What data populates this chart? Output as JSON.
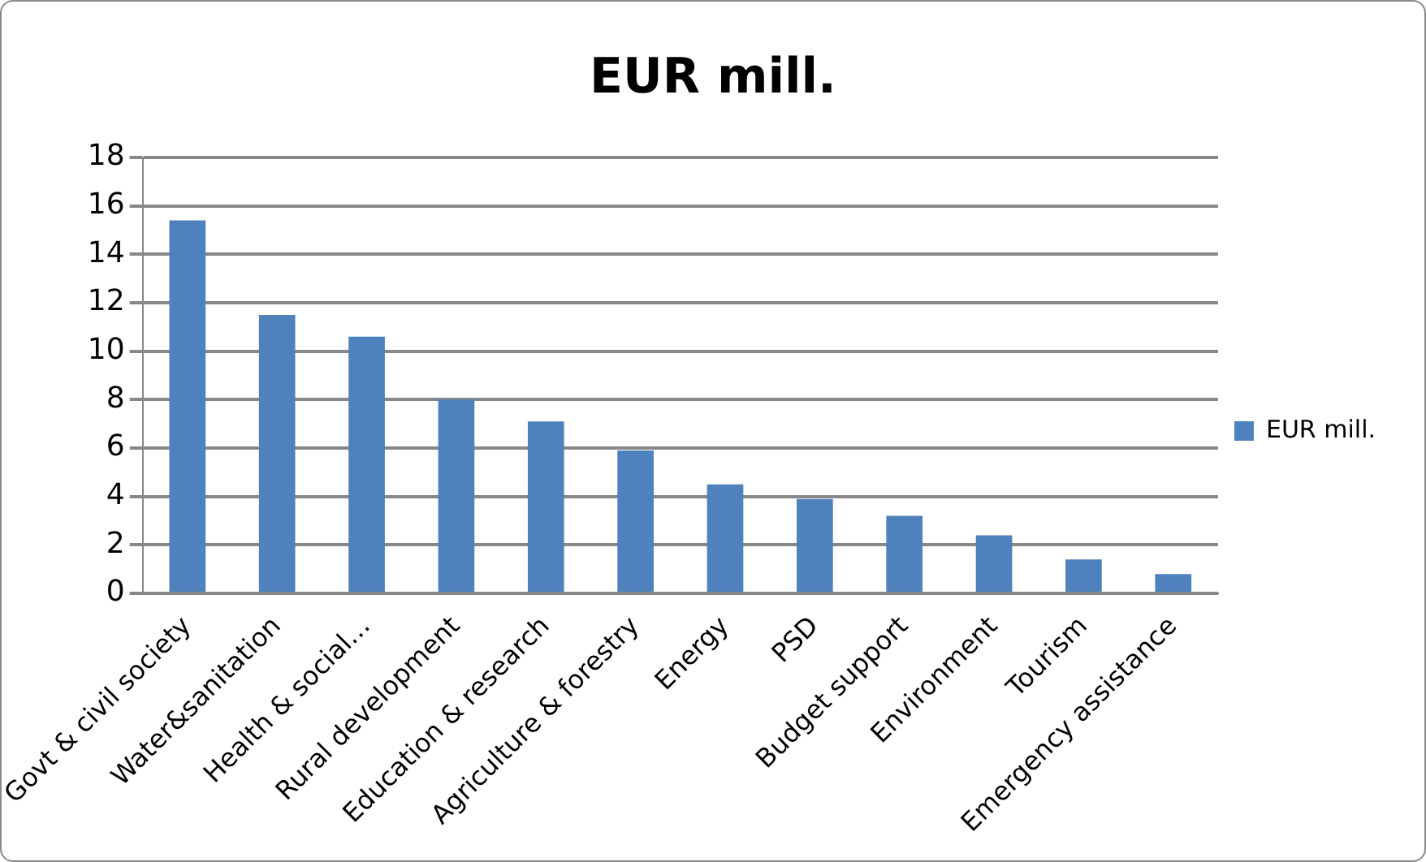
{
  "chart_data": {
    "type": "bar",
    "title": "EUR mill.",
    "categories": [
      "Govt & civil society",
      "Water&sanitation",
      "Health & social…",
      "Rural development",
      "Education & research",
      "Agriculture & forestry",
      "Energy",
      "PSD",
      "Budget support",
      "Environment",
      "Tourism",
      "Emergency assistance"
    ],
    "series": [
      {
        "name": "EUR mill.",
        "color": "#4f81bd",
        "values": [
          15.4,
          11.5,
          10.6,
          8.0,
          7.1,
          5.9,
          4.5,
          3.9,
          3.2,
          2.4,
          1.4,
          0.8
        ]
      }
    ],
    "ylim": [
      0,
      18
    ],
    "yticks": [
      0,
      2,
      4,
      6,
      8,
      10,
      12,
      14,
      16,
      18
    ],
    "grid": "y",
    "legend": "right"
  }
}
